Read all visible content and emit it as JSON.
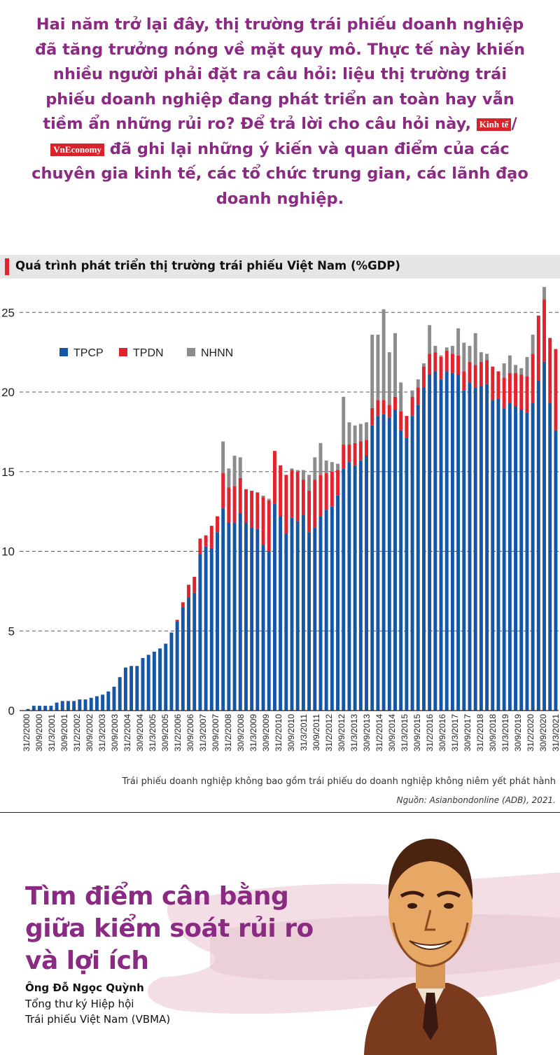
{
  "intro": {
    "part1": "Hai năm trở lại đây, thị trường trái phiếu doanh nghiệp đã tăng trưởng nóng về mặt quy mô. Thực tế này khiến nhiều người phải đặt ra câu hỏi: liệu thị trường trái phiếu doanh nghiệp đang phát triển an toàn hay vẫn tiềm ẩn những rủi ro? Để trả lời cho câu hỏi này,",
    "logo1": "Kinh tế",
    "logo_sep": "/",
    "logo2": "VnEconomy",
    "part2": "đã ghi lại những ý kiến và quan điểm của các chuyên gia kinh tế, các tổ chức trung gian, các lãnh đạo doanh nghiệp."
  },
  "colors": {
    "tpcp": "#1656a6",
    "tpdn": "#e1232d",
    "nhnn": "#8c8c8c",
    "accent": "#8b2a82"
  },
  "chart_data": {
    "type": "bar",
    "stacked": true,
    "title": "Quá trình phát triển thị trường trái phiếu Việt Nam (%GDP)",
    "ylim": [
      0,
      26
    ],
    "yticks": [
      0,
      5,
      10,
      15,
      20,
      25
    ],
    "grid": "horizontal dashed",
    "legend_position": "top-left",
    "tick_labels": [
      "31/2/2000",
      "30/9/2000",
      "31/3/2001",
      "30/9/2001",
      "31/2/2002",
      "30/9/2002",
      "31/3/2003",
      "30/9/2003",
      "31/2/2004",
      "30/9/2004",
      "31/3/2005",
      "30/9/2005",
      "31/2/2006",
      "30/9/2006",
      "31/3/2007",
      "30/9/2007",
      "31/2/2008",
      "30/9/2008",
      "31/3/2009",
      "30/9/2009",
      "31/2/2010",
      "30/9/2010",
      "31/3/2011",
      "30/9/2011",
      "31/2/2012",
      "30/9/2012",
      "31/3/2013",
      "30/9/2013",
      "31/2/2014",
      "30/9/2014",
      "31/3/2015",
      "30/9/2015",
      "31/2/2016",
      "30/9/2016",
      "31/3/2017",
      "30/9/2017",
      "31/2/2018",
      "30/9/2018",
      "31/3/2019",
      "30/9/2019",
      "31/2/2020",
      "30/9/2020",
      "31/3/2021"
    ],
    "series": [
      {
        "name": "TPCP",
        "values": [
          0.1,
          0.3,
          0.3,
          0.3,
          0.3,
          0.5,
          0.6,
          0.6,
          0.6,
          0.7,
          0.7,
          0.8,
          0.9,
          1.0,
          1.2,
          1.5,
          2.1,
          2.7,
          2.8,
          2.8,
          3.3,
          3.5,
          3.7,
          3.9,
          4.2,
          4.9,
          5.6,
          6.5,
          7.1,
          7.4,
          9.8,
          10.3,
          10.2,
          11.2,
          12.7,
          11.8,
          11.8,
          12.4,
          11.8,
          11.5,
          11.4,
          10.4,
          10.0,
          13.0,
          12.2,
          11.1,
          12.1,
          11.9,
          12.3,
          11.2,
          11.5,
          12.2,
          12.6,
          12.8,
          13.5,
          15.2,
          15.6,
          15.4,
          15.7,
          16.0,
          17.9,
          18.5,
          18.6,
          18.4,
          18.9,
          17.6,
          17.1,
          18.5,
          19.2,
          20.3,
          21.1,
          21.3,
          20.8,
          21.3,
          21.2,
          21.1,
          20.1,
          20.6,
          20.3,
          20.4,
          20.5,
          19.5,
          19.6,
          19.0,
          19.3,
          19.1,
          18.9,
          18.7,
          19.3,
          20.7,
          21.9,
          19.3,
          17.6
        ]
      },
      {
        "name": "TPDN",
        "values": [
          0,
          0,
          0,
          0,
          0,
          0,
          0,
          0,
          0,
          0,
          0,
          0,
          0,
          0,
          0,
          0,
          0,
          0,
          0,
          0,
          0,
          0,
          0,
          0,
          0,
          0,
          0.1,
          0.3,
          0.8,
          1.0,
          1.0,
          0.7,
          1.4,
          1.0,
          2.2,
          2.2,
          2.3,
          2.2,
          2.1,
          2.3,
          2.3,
          3.0,
          3.2,
          3.3,
          3.2,
          3.7,
          3.0,
          3.1,
          2.2,
          2.6,
          3.0,
          2.6,
          2.3,
          2.2,
          1.6,
          1.5,
          1.1,
          1.4,
          1.2,
          1.0,
          1.1,
          1.0,
          0.9,
          0.8,
          0.8,
          1.2,
          1.4,
          1.2,
          1.1,
          1.3,
          1.3,
          1.2,
          1.4,
          1.3,
          1.2,
          1.2,
          1.2,
          1.3,
          1.4,
          1.5,
          1.5,
          2.1,
          1.7,
          1.9,
          1.9,
          2.1,
          2.2,
          2.3,
          3.1,
          4.1,
          3.9,
          4.1,
          5.1
        ]
      },
      {
        "name": "NHNN",
        "values": [
          0,
          0,
          0,
          0,
          0,
          0,
          0,
          0,
          0,
          0,
          0,
          0,
          0,
          0,
          0,
          0,
          0,
          0,
          0,
          0,
          0,
          0,
          0,
          0,
          0,
          0,
          0,
          0,
          0,
          0,
          0,
          0,
          0,
          0,
          2.0,
          1.2,
          1.9,
          1.3,
          0,
          0,
          0,
          0.1,
          0.1,
          0,
          0,
          0,
          0.1,
          0.1,
          0.6,
          1.0,
          1.4,
          2.0,
          0.8,
          0.6,
          0.4,
          3.0,
          1.4,
          1.1,
          1.1,
          1.1,
          4.6,
          4.1,
          5.7,
          3.3,
          4.0,
          1.8,
          0,
          0.4,
          0.5,
          0.2,
          1.8,
          0.4,
          0.1,
          0.2,
          0.5,
          1.7,
          1.8,
          1.0,
          2.0,
          0.6,
          0.4,
          0,
          0,
          0.9,
          1.1,
          0.5,
          0.4,
          1.2,
          1.2,
          0,
          0.8,
          0,
          0
        ]
      }
    ],
    "footnote": "Trái phiếu doanh nghiệp không bao gồm trái phiếu do doanh nghiệp không niêm yết phát hành",
    "source": "Nguồn: Asianbondonline (ADB), 2021."
  },
  "article": {
    "headline_lines": [
      "Tìm điểm cân bằng",
      "giữa kiểm soát rủi ro",
      "và lợi ích"
    ],
    "person_name": "Ông Đỗ Ngọc Quỳnh",
    "person_role_line1": "Tổng thư ký Hiệp hội",
    "person_role_line2": "Trái phiếu Việt Nam (VBMA)"
  }
}
